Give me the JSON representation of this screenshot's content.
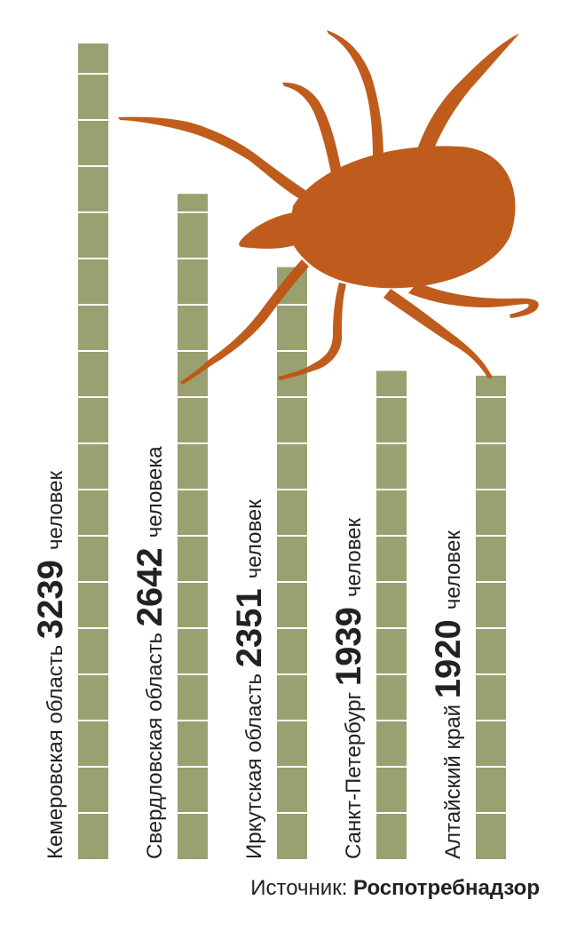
{
  "chart_data": {
    "type": "bar",
    "orientation": "vertical",
    "categories": [
      "Кемеровская область",
      "Свердловская область",
      "Иркутская область",
      "Санкт-Петербург",
      "Алтайский край"
    ],
    "values": [
      3239,
      2642,
      2351,
      1939,
      1920
    ],
    "value_labels": [
      "3239",
      "2642",
      "2351",
      "1939",
      "1920"
    ],
    "units": [
      "человек",
      "человека",
      "человек",
      "человек",
      "человек"
    ],
    "ylim": [
      0,
      3239
    ],
    "grid": false,
    "colors": {
      "bar": "#9aa070",
      "bar_divider": "#ffffff",
      "tick_illustration": "#bd5614",
      "text": "#222222"
    }
  },
  "source": {
    "label": "Источник:",
    "name": "Роспотребнадзор"
  },
  "illustration": {
    "icon": "tick-icon"
  }
}
